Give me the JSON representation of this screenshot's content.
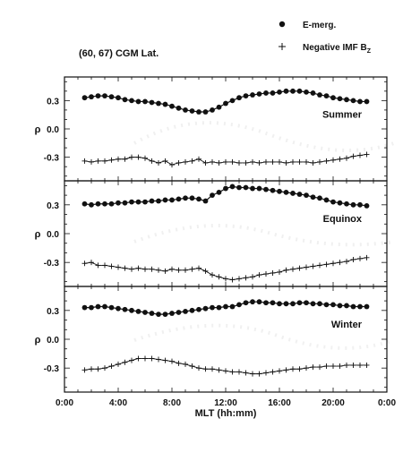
{
  "region_label": "(60, 67) CGM Lat.",
  "legend": [
    {
      "marker": "dot",
      "label": "E-merg."
    },
    {
      "marker": "plus",
      "label": "Negative IMF B",
      "subscript": "Z"
    }
  ],
  "colors": {
    "ink": "#111111",
    "ghost": "#d9d9d9"
  },
  "chart_data": [
    {
      "type": "line",
      "panel": "Summer",
      "xlabel": "",
      "ylabel": "ρ",
      "xlim": [
        0,
        24
      ],
      "ylim": [
        -0.55,
        0.55
      ],
      "yticks": [
        "0.3",
        "0.0",
        "-0.3"
      ],
      "series": [
        {
          "name": "E-merg.",
          "marker": "dot",
          "x": [
            1.5,
            2,
            2.5,
            3,
            3.5,
            4,
            4.5,
            5,
            5.5,
            6,
            6.5,
            7,
            7.5,
            8,
            8.5,
            9,
            9.5,
            10,
            10.5,
            11,
            11.5,
            12,
            12.5,
            13,
            13.5,
            14,
            14.5,
            15,
            15.5,
            16,
            16.5,
            17,
            17.5,
            18,
            18.5,
            19,
            19.5,
            20,
            20.5,
            21,
            21.5,
            22,
            22.5
          ],
          "y": [
            0.33,
            0.34,
            0.35,
            0.35,
            0.34,
            0.33,
            0.31,
            0.3,
            0.29,
            0.29,
            0.28,
            0.27,
            0.26,
            0.24,
            0.22,
            0.2,
            0.19,
            0.18,
            0.18,
            0.2,
            0.23,
            0.27,
            0.3,
            0.33,
            0.35,
            0.36,
            0.37,
            0.38,
            0.38,
            0.39,
            0.4,
            0.4,
            0.4,
            0.39,
            0.38,
            0.36,
            0.35,
            0.33,
            0.32,
            0.31,
            0.3,
            0.29,
            0.29
          ]
        },
        {
          "name": "Negative IMF BZ",
          "marker": "plus",
          "x": [
            1.5,
            2,
            2.5,
            3,
            3.5,
            4,
            4.5,
            5,
            5.5,
            6,
            6.5,
            7,
            7.5,
            8,
            8.5,
            9,
            9.5,
            10,
            10.5,
            11,
            11.5,
            12,
            12.5,
            13,
            13.5,
            14,
            14.5,
            15,
            15.5,
            16,
            16.5,
            17,
            17.5,
            18,
            18.5,
            19,
            19.5,
            20,
            20.5,
            21,
            21.5,
            22,
            22.5
          ],
          "y": [
            -0.34,
            -0.35,
            -0.34,
            -0.34,
            -0.33,
            -0.32,
            -0.32,
            -0.3,
            -0.3,
            -0.31,
            -0.34,
            -0.36,
            -0.34,
            -0.38,
            -0.36,
            -0.35,
            -0.34,
            -0.32,
            -0.36,
            -0.35,
            -0.36,
            -0.35,
            -0.35,
            -0.36,
            -0.36,
            -0.35,
            -0.36,
            -0.35,
            -0.35,
            -0.35,
            -0.36,
            -0.35,
            -0.35,
            -0.35,
            -0.36,
            -0.35,
            -0.34,
            -0.33,
            -0.32,
            -0.31,
            -0.29,
            -0.28,
            -0.27
          ]
        }
      ]
    },
    {
      "type": "line",
      "panel": "Equinox",
      "xlabel": "",
      "ylabel": "ρ",
      "xlim": [
        0,
        24
      ],
      "ylim": [
        -0.55,
        0.55
      ],
      "yticks": [
        "0.3",
        "0.0",
        "-0.3"
      ],
      "series": [
        {
          "name": "E-merg.",
          "marker": "dot",
          "x": [
            1.5,
            2,
            2.5,
            3,
            3.5,
            4,
            4.5,
            5,
            5.5,
            6,
            6.5,
            7,
            7.5,
            8,
            8.5,
            9,
            9.5,
            10,
            10.5,
            11,
            11.5,
            12,
            12.5,
            13,
            13.5,
            14,
            14.5,
            15,
            15.5,
            16,
            16.5,
            17,
            17.5,
            18,
            18.5,
            19,
            19.5,
            20,
            20.5,
            21,
            21.5,
            22,
            22.5
          ],
          "y": [
            0.31,
            0.3,
            0.31,
            0.31,
            0.31,
            0.32,
            0.32,
            0.33,
            0.33,
            0.33,
            0.34,
            0.34,
            0.35,
            0.35,
            0.36,
            0.37,
            0.37,
            0.36,
            0.34,
            0.4,
            0.43,
            0.47,
            0.49,
            0.48,
            0.48,
            0.47,
            0.47,
            0.46,
            0.45,
            0.44,
            0.43,
            0.42,
            0.41,
            0.4,
            0.38,
            0.37,
            0.35,
            0.33,
            0.32,
            0.31,
            0.3,
            0.3,
            0.29
          ]
        },
        {
          "name": "Negative IMF BZ",
          "marker": "plus",
          "x": [
            1.5,
            2,
            2.5,
            3,
            3.5,
            4,
            4.5,
            5,
            5.5,
            6,
            6.5,
            7,
            7.5,
            8,
            8.5,
            9,
            9.5,
            10,
            10.5,
            11,
            11.5,
            12,
            12.5,
            13,
            13.5,
            14,
            14.5,
            15,
            15.5,
            16,
            16.5,
            17,
            17.5,
            18,
            18.5,
            19,
            19.5,
            20,
            20.5,
            21,
            21.5,
            22,
            22.5
          ],
          "y": [
            -0.31,
            -0.3,
            -0.33,
            -0.33,
            -0.34,
            -0.35,
            -0.36,
            -0.37,
            -0.36,
            -0.37,
            -0.37,
            -0.38,
            -0.39,
            -0.37,
            -0.38,
            -0.38,
            -0.37,
            -0.36,
            -0.39,
            -0.43,
            -0.45,
            -0.47,
            -0.48,
            -0.47,
            -0.46,
            -0.45,
            -0.43,
            -0.42,
            -0.41,
            -0.4,
            -0.38,
            -0.37,
            -0.36,
            -0.35,
            -0.34,
            -0.33,
            -0.32,
            -0.31,
            -0.3,
            -0.29,
            -0.27,
            -0.26,
            -0.25
          ]
        }
      ]
    },
    {
      "type": "line",
      "panel": "Winter",
      "xlabel": "MLT (hh:mm)",
      "ylabel": "ρ",
      "xlim": [
        0,
        24
      ],
      "ylim": [
        -0.55,
        0.55
      ],
      "yticks": [
        "0.3",
        "0.0",
        "-0.3"
      ],
      "xticks": [
        "0:00",
        "4:00",
        "8:00",
        "12:00",
        "16:00",
        "20:00",
        "0:00"
      ],
      "series": [
        {
          "name": "E-merg.",
          "marker": "dot",
          "x": [
            1.5,
            2,
            2.5,
            3,
            3.5,
            4,
            4.5,
            5,
            5.5,
            6,
            6.5,
            7,
            7.5,
            8,
            8.5,
            9,
            9.5,
            10,
            10.5,
            11,
            11.5,
            12,
            12.5,
            13,
            13.5,
            14,
            14.5,
            15,
            15.5,
            16,
            16.5,
            17,
            17.5,
            18,
            18.5,
            19,
            19.5,
            20,
            20.5,
            21,
            21.5,
            22,
            22.5
          ],
          "y": [
            0.33,
            0.33,
            0.34,
            0.34,
            0.33,
            0.32,
            0.31,
            0.3,
            0.29,
            0.28,
            0.27,
            0.26,
            0.26,
            0.27,
            0.28,
            0.29,
            0.3,
            0.31,
            0.32,
            0.33,
            0.33,
            0.34,
            0.34,
            0.36,
            0.38,
            0.39,
            0.39,
            0.38,
            0.38,
            0.37,
            0.37,
            0.37,
            0.38,
            0.38,
            0.37,
            0.37,
            0.36,
            0.36,
            0.35,
            0.35,
            0.34,
            0.34,
            0.34
          ]
        },
        {
          "name": "Negative IMF BZ",
          "marker": "plus",
          "x": [
            1.5,
            2,
            2.5,
            3,
            3.5,
            4,
            4.5,
            5,
            5.5,
            6,
            6.5,
            7,
            7.5,
            8,
            8.5,
            9,
            9.5,
            10,
            10.5,
            11,
            11.5,
            12,
            12.5,
            13,
            13.5,
            14,
            14.5,
            15,
            15.5,
            16,
            16.5,
            17,
            17.5,
            18,
            18.5,
            19,
            19.5,
            20,
            20.5,
            21,
            21.5,
            22,
            22.5
          ],
          "y": [
            -0.32,
            -0.31,
            -0.31,
            -0.3,
            -0.28,
            -0.26,
            -0.24,
            -0.22,
            -0.2,
            -0.2,
            -0.2,
            -0.21,
            -0.22,
            -0.23,
            -0.25,
            -0.26,
            -0.28,
            -0.3,
            -0.31,
            -0.31,
            -0.32,
            -0.33,
            -0.34,
            -0.34,
            -0.35,
            -0.36,
            -0.36,
            -0.35,
            -0.34,
            -0.33,
            -0.32,
            -0.31,
            -0.31,
            -0.3,
            -0.29,
            -0.29,
            -0.28,
            -0.28,
            -0.28,
            -0.27,
            -0.27,
            -0.27,
            -0.27
          ]
        }
      ]
    }
  ]
}
